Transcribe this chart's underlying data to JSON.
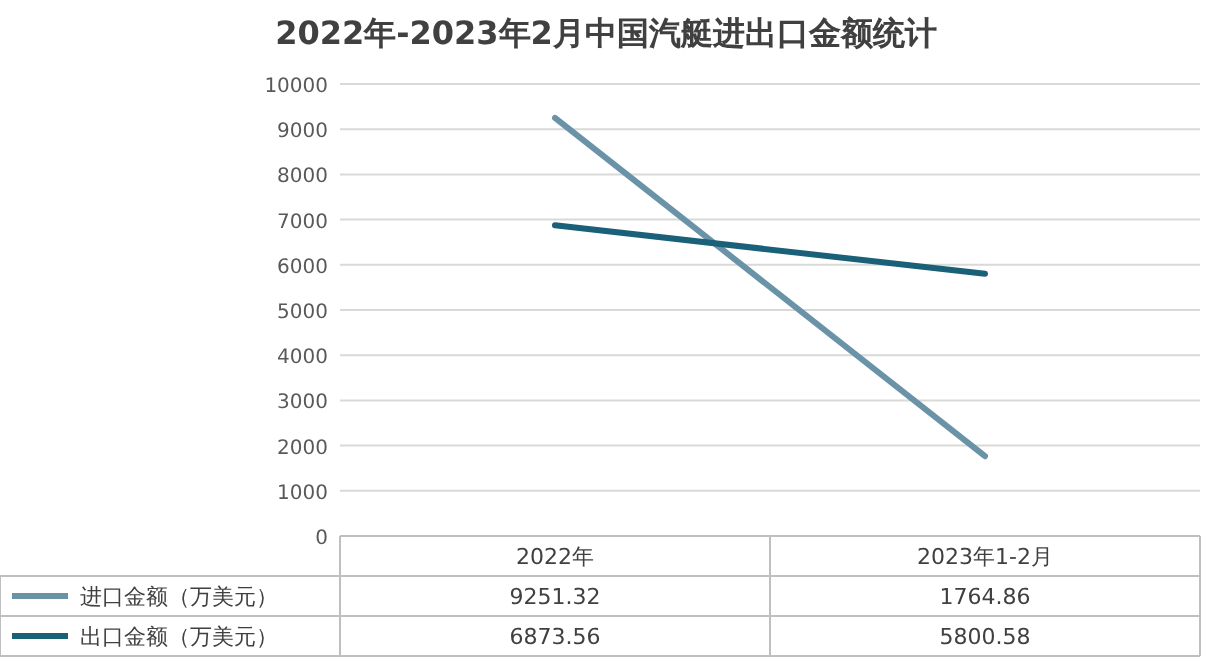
{
  "chart_data": {
    "type": "line",
    "title": "2022年-2023年2月中国汽艇进出口金额统计",
    "categories": [
      "2022年",
      "2023年1-2月"
    ],
    "series": [
      {
        "name": "进口金额（万美元）",
        "color": "#6a93a8",
        "values": [
          9251.32,
          1764.86
        ]
      },
      {
        "name": "出口金额（万美元）",
        "color": "#1a6079",
        "values": [
          6873.56,
          5800.58
        ]
      }
    ],
    "ylim": [
      0,
      10000
    ],
    "yticks": [
      0,
      1000,
      2000,
      3000,
      4000,
      5000,
      6000,
      7000,
      8000,
      9000,
      10000
    ],
    "grid": "y",
    "legend": "bottom",
    "data_labels": true,
    "marker": "none",
    "line_style": "solid"
  }
}
